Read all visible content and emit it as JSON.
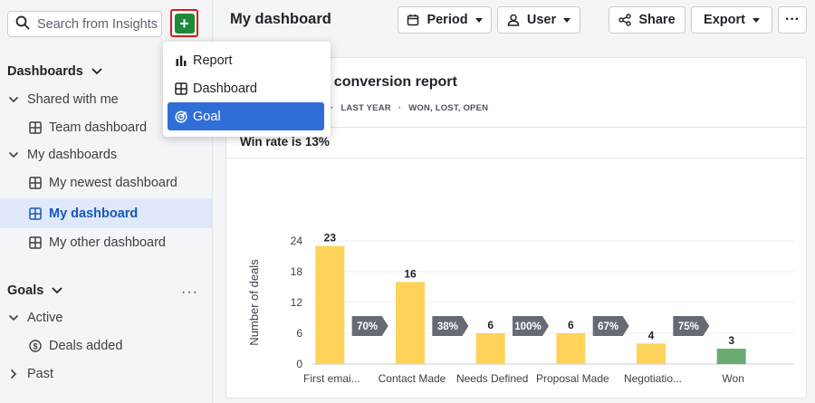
{
  "search": {
    "placeholder": "Search from Insights"
  },
  "add_button": {
    "label": "+"
  },
  "menu": {
    "items": [
      {
        "label": "Report",
        "icon": "bar-chart-icon"
      },
      {
        "label": "Dashboard",
        "icon": "dashboard-icon"
      },
      {
        "label": "Goal",
        "icon": "target-icon"
      }
    ]
  },
  "sidebar": {
    "dashboards_heading": "Dashboards",
    "shared_group": "Shared with me",
    "team_dashboard": "Team dashboard",
    "my_group": "My dashboards",
    "my_items": [
      "My newest dashboard",
      "My dashboard",
      "My other dashboard"
    ],
    "goals_heading": "Goals",
    "active_group": "Active",
    "deals_added": "Deals added",
    "past_group": "Past"
  },
  "topbar": {
    "title": "My dashboard",
    "period": "Period",
    "user": "User",
    "share": "Share",
    "export": "Export"
  },
  "report": {
    "title_visible": "el conversion report",
    "filters": [
      "·",
      "LAST YEAR",
      "·",
      "WON, LOST, OPEN"
    ],
    "win_rate": "Win rate is 13%"
  },
  "colors": {
    "bar": "#fdd35a",
    "won": "#6aab72",
    "badge": "#656a73",
    "active_bg": "#dfe9fb",
    "active_text": "#1a56b8"
  },
  "chart_data": {
    "type": "bar",
    "ylabel": "Number of deals",
    "ylim": [
      0,
      24
    ],
    "yticks": [
      0,
      6,
      12,
      18,
      24
    ],
    "categories": [
      "First emai...",
      "Contact Made",
      "Needs Defined",
      "Proposal Made",
      "Negotiatio...",
      "Won"
    ],
    "values": [
      23,
      16,
      6,
      6,
      4,
      3
    ],
    "bar_colors": [
      "#fdd35a",
      "#fdd35a",
      "#fdd35a",
      "#fdd35a",
      "#fdd35a",
      "#6aab72"
    ],
    "conversion_rates": [
      "70%",
      "38%",
      "100%",
      "67%",
      "75%"
    ],
    "grid": true
  }
}
